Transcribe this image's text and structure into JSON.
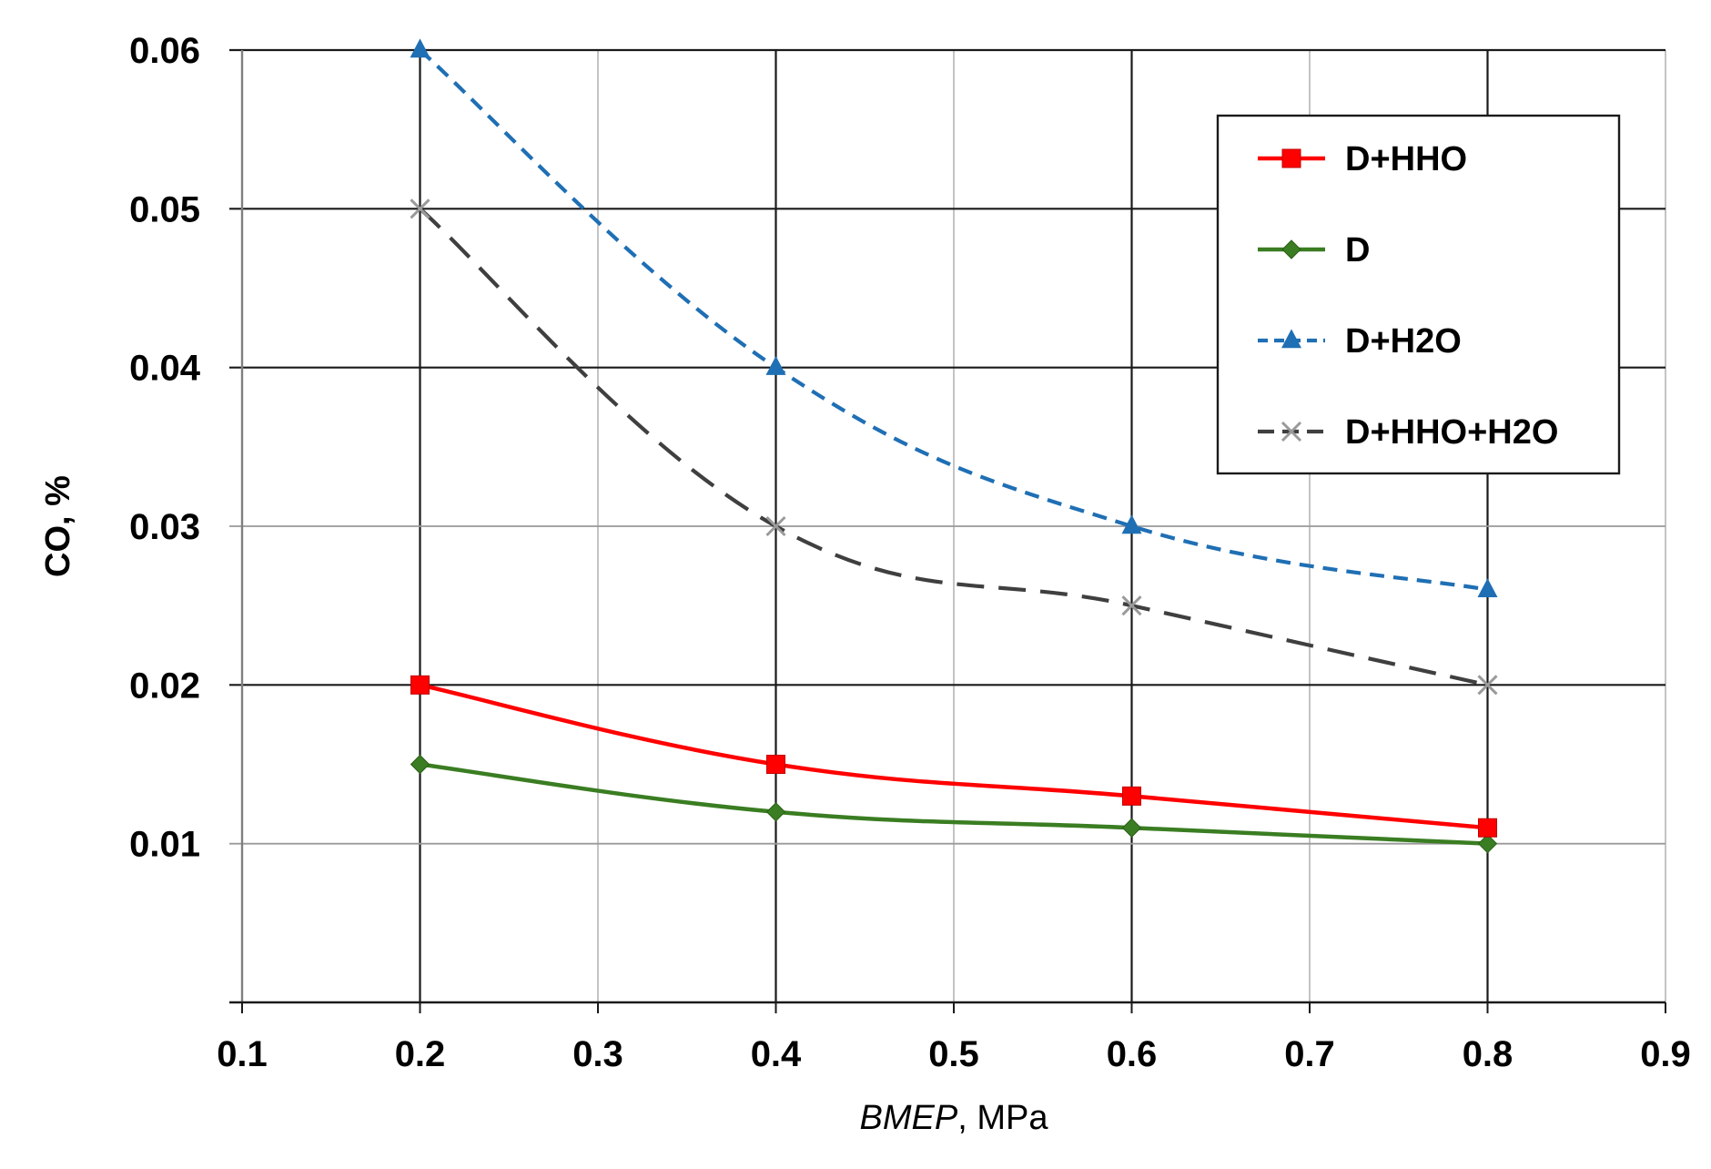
{
  "chart_data": {
    "type": "line",
    "title": "",
    "xlabel_italic": "BMEP",
    "xlabel_rest": ", MPa",
    "ylabel": "CO, %",
    "xlim": [
      0.1,
      0.9
    ],
    "ylim": [
      0,
      0.06
    ],
    "xticks": [
      0.1,
      0.2,
      0.3,
      0.4,
      0.5,
      0.6,
      0.7,
      0.8,
      0.9
    ],
    "xtick_labels": [
      "0.1",
      "0.2",
      "0.3",
      "0.4",
      "0.5",
      "0.6",
      "0.7",
      "0.8",
      "0.9"
    ],
    "yticks": [
      0.01,
      0.02,
      0.03,
      0.04,
      0.05,
      0.06
    ],
    "ytick_labels": [
      "0.01",
      "0.02",
      "0.03",
      "0.04",
      "0.05",
      "0.06"
    ],
    "grid": true,
    "legend_position": "top-right",
    "series": [
      {
        "name": "D+HHO",
        "x": [
          0.2,
          0.4,
          0.6,
          0.8
        ],
        "values": [
          0.02,
          0.015,
          0.013,
          0.011
        ],
        "color": "#ff0000",
        "marker": "square",
        "style": "solid"
      },
      {
        "name": "D",
        "x": [
          0.2,
          0.4,
          0.6,
          0.8
        ],
        "values": [
          0.015,
          0.012,
          0.011,
          0.01
        ],
        "color": "#3a7d22",
        "marker": "diamond",
        "style": "solid"
      },
      {
        "name": "D+H2O",
        "x": [
          0.2,
          0.4,
          0.6,
          0.8
        ],
        "values": [
          0.06,
          0.04,
          0.03,
          0.026
        ],
        "color": "#1f6fb4",
        "marker": "triangle",
        "style": "short-dash"
      },
      {
        "name": "D+HHO+H2O",
        "x": [
          0.2,
          0.4,
          0.6,
          0.8
        ],
        "values": [
          0.05,
          0.03,
          0.025,
          0.02
        ],
        "color": "#3f3f3f",
        "marker": "x",
        "style": "long-dash"
      }
    ]
  }
}
